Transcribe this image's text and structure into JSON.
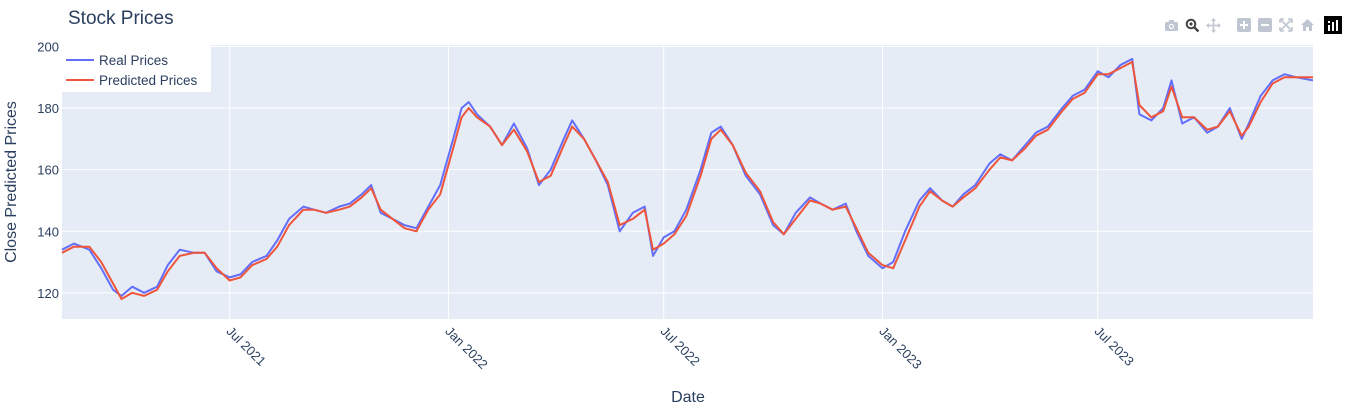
{
  "title": "Stock Prices",
  "modebar": {
    "buttons": [
      "camera-icon",
      "zoom-icon",
      "pan-icon",
      "zoom-in-icon",
      "zoom-out-icon",
      "autoscale-icon",
      "home-icon"
    ],
    "logo": "plotly-logo-icon"
  },
  "colors": {
    "plot_bg": "#e5ecf6",
    "grid": "#ffffff",
    "text": "#2a3f5f",
    "real": "#636efa",
    "predicted": "#ef553b"
  },
  "chart_data": {
    "type": "line",
    "title": "Stock Prices",
    "xlabel": "Date",
    "ylabel": "Close Predicted Prices",
    "xlim": [
      "2021-02-10",
      "2023-12-29"
    ],
    "ylim": [
      111.5,
      200.5
    ],
    "grid": true,
    "legend_position": "top-left",
    "x_ticks": [
      {
        "date": "2021-07-01",
        "label": "Jul 2021"
      },
      {
        "date": "2022-01-01",
        "label": "Jan 2022"
      },
      {
        "date": "2022-07-01",
        "label": "Jul 2022"
      },
      {
        "date": "2023-01-01",
        "label": "Jan 2023"
      },
      {
        "date": "2023-07-01",
        "label": "Jul 2023"
      }
    ],
    "y_ticks": [
      120,
      140,
      160,
      180,
      200
    ],
    "series": [
      {
        "name": "Real Prices",
        "color": "#636efa",
        "points": [
          [
            "2021-02-10",
            134
          ],
          [
            "2021-02-20",
            136
          ],
          [
            "2021-03-05",
            134
          ],
          [
            "2021-03-15",
            128
          ],
          [
            "2021-03-25",
            121
          ],
          [
            "2021-04-01",
            119
          ],
          [
            "2021-04-10",
            122
          ],
          [
            "2021-04-20",
            120
          ],
          [
            "2021-05-01",
            122
          ],
          [
            "2021-05-10",
            129
          ],
          [
            "2021-05-20",
            134
          ],
          [
            "2021-06-01",
            133
          ],
          [
            "2021-06-10",
            133
          ],
          [
            "2021-06-20",
            127
          ],
          [
            "2021-07-01",
            125
          ],
          [
            "2021-07-10",
            126
          ],
          [
            "2021-07-20",
            130
          ],
          [
            "2021-08-01",
            132
          ],
          [
            "2021-08-10",
            137
          ],
          [
            "2021-08-20",
            144
          ],
          [
            "2021-09-01",
            148
          ],
          [
            "2021-09-10",
            147
          ],
          [
            "2021-09-20",
            146
          ],
          [
            "2021-10-01",
            148
          ],
          [
            "2021-10-10",
            149
          ],
          [
            "2021-10-20",
            152
          ],
          [
            "2021-10-28",
            155
          ],
          [
            "2021-11-05",
            146
          ],
          [
            "2021-11-15",
            144
          ],
          [
            "2021-11-25",
            142
          ],
          [
            "2021-12-05",
            141
          ],
          [
            "2021-12-15",
            148
          ],
          [
            "2021-12-25",
            155
          ],
          [
            "2022-01-05",
            170
          ],
          [
            "2022-01-12",
            180
          ],
          [
            "2022-01-18",
            182
          ],
          [
            "2022-01-25",
            178
          ],
          [
            "2022-02-05",
            174
          ],
          [
            "2022-02-15",
            168
          ],
          [
            "2022-02-25",
            175
          ],
          [
            "2022-03-08",
            167
          ],
          [
            "2022-03-18",
            155
          ],
          [
            "2022-03-28",
            160
          ],
          [
            "2022-04-08",
            170
          ],
          [
            "2022-04-15",
            176
          ],
          [
            "2022-04-25",
            170
          ],
          [
            "2022-05-05",
            163
          ],
          [
            "2022-05-15",
            155
          ],
          [
            "2022-05-25",
            140
          ],
          [
            "2022-06-05",
            146
          ],
          [
            "2022-06-15",
            148
          ],
          [
            "2022-06-22",
            132
          ],
          [
            "2022-07-01",
            138
          ],
          [
            "2022-07-10",
            140
          ],
          [
            "2022-07-20",
            147
          ],
          [
            "2022-08-01",
            160
          ],
          [
            "2022-08-10",
            172
          ],
          [
            "2022-08-18",
            174
          ],
          [
            "2022-08-28",
            168
          ],
          [
            "2022-09-08",
            158
          ],
          [
            "2022-09-20",
            152
          ],
          [
            "2022-10-01",
            142
          ],
          [
            "2022-10-10",
            139
          ],
          [
            "2022-10-20",
            146
          ],
          [
            "2022-11-01",
            151
          ],
          [
            "2022-11-10",
            149
          ],
          [
            "2022-11-20",
            147
          ],
          [
            "2022-12-01",
            149
          ],
          [
            "2022-12-10",
            140
          ],
          [
            "2022-12-20",
            132
          ],
          [
            "2023-01-01",
            128
          ],
          [
            "2023-01-10",
            130
          ],
          [
            "2023-01-20",
            140
          ],
          [
            "2023-02-01",
            150
          ],
          [
            "2023-02-10",
            154
          ],
          [
            "2023-02-20",
            150
          ],
          [
            "2023-03-01",
            148
          ],
          [
            "2023-03-10",
            152
          ],
          [
            "2023-03-20",
            155
          ],
          [
            "2023-04-01",
            162
          ],
          [
            "2023-04-10",
            165
          ],
          [
            "2023-04-20",
            163
          ],
          [
            "2023-05-01",
            168
          ],
          [
            "2023-05-10",
            172
          ],
          [
            "2023-05-20",
            174
          ],
          [
            "2023-06-01",
            180
          ],
          [
            "2023-06-10",
            184
          ],
          [
            "2023-06-20",
            186
          ],
          [
            "2023-07-01",
            192
          ],
          [
            "2023-07-10",
            190
          ],
          [
            "2023-07-20",
            194
          ],
          [
            "2023-07-30",
            196
          ],
          [
            "2023-08-05",
            178
          ],
          [
            "2023-08-15",
            176
          ],
          [
            "2023-08-25",
            180
          ],
          [
            "2023-09-01",
            189
          ],
          [
            "2023-09-10",
            175
          ],
          [
            "2023-09-20",
            177
          ],
          [
            "2023-10-01",
            172
          ],
          [
            "2023-10-10",
            174
          ],
          [
            "2023-10-20",
            180
          ],
          [
            "2023-10-30",
            170
          ],
          [
            "2023-11-05",
            175
          ],
          [
            "2023-11-15",
            184
          ],
          [
            "2023-11-25",
            189
          ],
          [
            "2023-12-05",
            191
          ],
          [
            "2023-12-15",
            190
          ],
          [
            "2023-12-29",
            189
          ]
        ]
      },
      {
        "name": "Predicted Prices",
        "color": "#ef553b",
        "points": [
          [
            "2021-02-10",
            133
          ],
          [
            "2021-02-20",
            135
          ],
          [
            "2021-03-05",
            135
          ],
          [
            "2021-03-15",
            130
          ],
          [
            "2021-03-25",
            123
          ],
          [
            "2021-04-01",
            118
          ],
          [
            "2021-04-10",
            120
          ],
          [
            "2021-04-20",
            119
          ],
          [
            "2021-05-01",
            121
          ],
          [
            "2021-05-10",
            127
          ],
          [
            "2021-05-20",
            132
          ],
          [
            "2021-06-01",
            133
          ],
          [
            "2021-06-10",
            133
          ],
          [
            "2021-06-20",
            128
          ],
          [
            "2021-07-01",
            124
          ],
          [
            "2021-07-10",
            125
          ],
          [
            "2021-07-20",
            129
          ],
          [
            "2021-08-01",
            131
          ],
          [
            "2021-08-10",
            135
          ],
          [
            "2021-08-20",
            142
          ],
          [
            "2021-09-01",
            147
          ],
          [
            "2021-09-10",
            147
          ],
          [
            "2021-09-20",
            146
          ],
          [
            "2021-10-01",
            147
          ],
          [
            "2021-10-10",
            148
          ],
          [
            "2021-10-20",
            151
          ],
          [
            "2021-10-28",
            154
          ],
          [
            "2021-11-05",
            147
          ],
          [
            "2021-11-15",
            144
          ],
          [
            "2021-11-25",
            141
          ],
          [
            "2021-12-05",
            140
          ],
          [
            "2021-12-15",
            147
          ],
          [
            "2021-12-25",
            152
          ],
          [
            "2022-01-05",
            167
          ],
          [
            "2022-01-12",
            177
          ],
          [
            "2022-01-18",
            180
          ],
          [
            "2022-01-25",
            177
          ],
          [
            "2022-02-05",
            174
          ],
          [
            "2022-02-15",
            168
          ],
          [
            "2022-02-25",
            173
          ],
          [
            "2022-03-08",
            166
          ],
          [
            "2022-03-18",
            156
          ],
          [
            "2022-03-28",
            158
          ],
          [
            "2022-04-08",
            168
          ],
          [
            "2022-04-15",
            174
          ],
          [
            "2022-04-25",
            170
          ],
          [
            "2022-05-05",
            163
          ],
          [
            "2022-05-15",
            156
          ],
          [
            "2022-05-25",
            142
          ],
          [
            "2022-06-05",
            144
          ],
          [
            "2022-06-15",
            147
          ],
          [
            "2022-06-22",
            134
          ],
          [
            "2022-07-01",
            136
          ],
          [
            "2022-07-10",
            139
          ],
          [
            "2022-07-20",
            145
          ],
          [
            "2022-08-01",
            158
          ],
          [
            "2022-08-10",
            170
          ],
          [
            "2022-08-18",
            173
          ],
          [
            "2022-08-28",
            168
          ],
          [
            "2022-09-08",
            159
          ],
          [
            "2022-09-20",
            153
          ],
          [
            "2022-10-01",
            143
          ],
          [
            "2022-10-10",
            139
          ],
          [
            "2022-10-20",
            144
          ],
          [
            "2022-11-01",
            150
          ],
          [
            "2022-11-10",
            149
          ],
          [
            "2022-11-20",
            147
          ],
          [
            "2022-12-01",
            148
          ],
          [
            "2022-12-10",
            141
          ],
          [
            "2022-12-20",
            133
          ],
          [
            "2023-01-01",
            129
          ],
          [
            "2023-01-10",
            128
          ],
          [
            "2023-01-20",
            137
          ],
          [
            "2023-02-01",
            148
          ],
          [
            "2023-02-10",
            153
          ],
          [
            "2023-02-20",
            150
          ],
          [
            "2023-03-01",
            148
          ],
          [
            "2023-03-10",
            151
          ],
          [
            "2023-03-20",
            154
          ],
          [
            "2023-04-01",
            160
          ],
          [
            "2023-04-10",
            164
          ],
          [
            "2023-04-20",
            163
          ],
          [
            "2023-05-01",
            167
          ],
          [
            "2023-05-10",
            171
          ],
          [
            "2023-05-20",
            173
          ],
          [
            "2023-06-01",
            179
          ],
          [
            "2023-06-10",
            183
          ],
          [
            "2023-06-20",
            185
          ],
          [
            "2023-07-01",
            191
          ],
          [
            "2023-07-10",
            191
          ],
          [
            "2023-07-20",
            193
          ],
          [
            "2023-07-30",
            195
          ],
          [
            "2023-08-05",
            181
          ],
          [
            "2023-08-15",
            177
          ],
          [
            "2023-08-25",
            179
          ],
          [
            "2023-09-01",
            187
          ],
          [
            "2023-09-10",
            177
          ],
          [
            "2023-09-20",
            177
          ],
          [
            "2023-10-01",
            173
          ],
          [
            "2023-10-10",
            174
          ],
          [
            "2023-10-20",
            179
          ],
          [
            "2023-10-30",
            171
          ],
          [
            "2023-11-05",
            174
          ],
          [
            "2023-11-15",
            182
          ],
          [
            "2023-11-25",
            188
          ],
          [
            "2023-12-05",
            190
          ],
          [
            "2023-12-15",
            190
          ],
          [
            "2023-12-29",
            190
          ]
        ]
      }
    ]
  }
}
